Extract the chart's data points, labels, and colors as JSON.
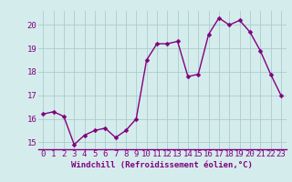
{
  "x": [
    0,
    1,
    2,
    3,
    4,
    5,
    6,
    7,
    8,
    9,
    10,
    11,
    12,
    13,
    14,
    15,
    16,
    17,
    18,
    19,
    20,
    21,
    22,
    23
  ],
  "y": [
    16.2,
    16.3,
    16.1,
    14.9,
    15.3,
    15.5,
    15.6,
    15.2,
    15.5,
    16.0,
    18.5,
    19.2,
    19.2,
    19.3,
    17.8,
    17.9,
    19.6,
    20.3,
    20.0,
    20.2,
    19.7,
    18.9,
    17.9,
    17.0
  ],
  "line_color": "#800080",
  "marker_color": "#800080",
  "bg_color": "#d5ecec",
  "grid_color": "#aacccc",
  "xlabel": "Windchill (Refroidissement éolien,°C)",
  "ylim": [
    14.7,
    20.6
  ],
  "xlim": [
    -0.5,
    23.5
  ],
  "yticks": [
    15,
    16,
    17,
    18,
    19,
    20
  ],
  "xticks": [
    0,
    1,
    2,
    3,
    4,
    5,
    6,
    7,
    8,
    9,
    10,
    11,
    12,
    13,
    14,
    15,
    16,
    17,
    18,
    19,
    20,
    21,
    22,
    23
  ],
  "xlabel_fontsize": 6.5,
  "tick_fontsize": 6.5,
  "marker_size": 2.5,
  "line_width": 1.0
}
